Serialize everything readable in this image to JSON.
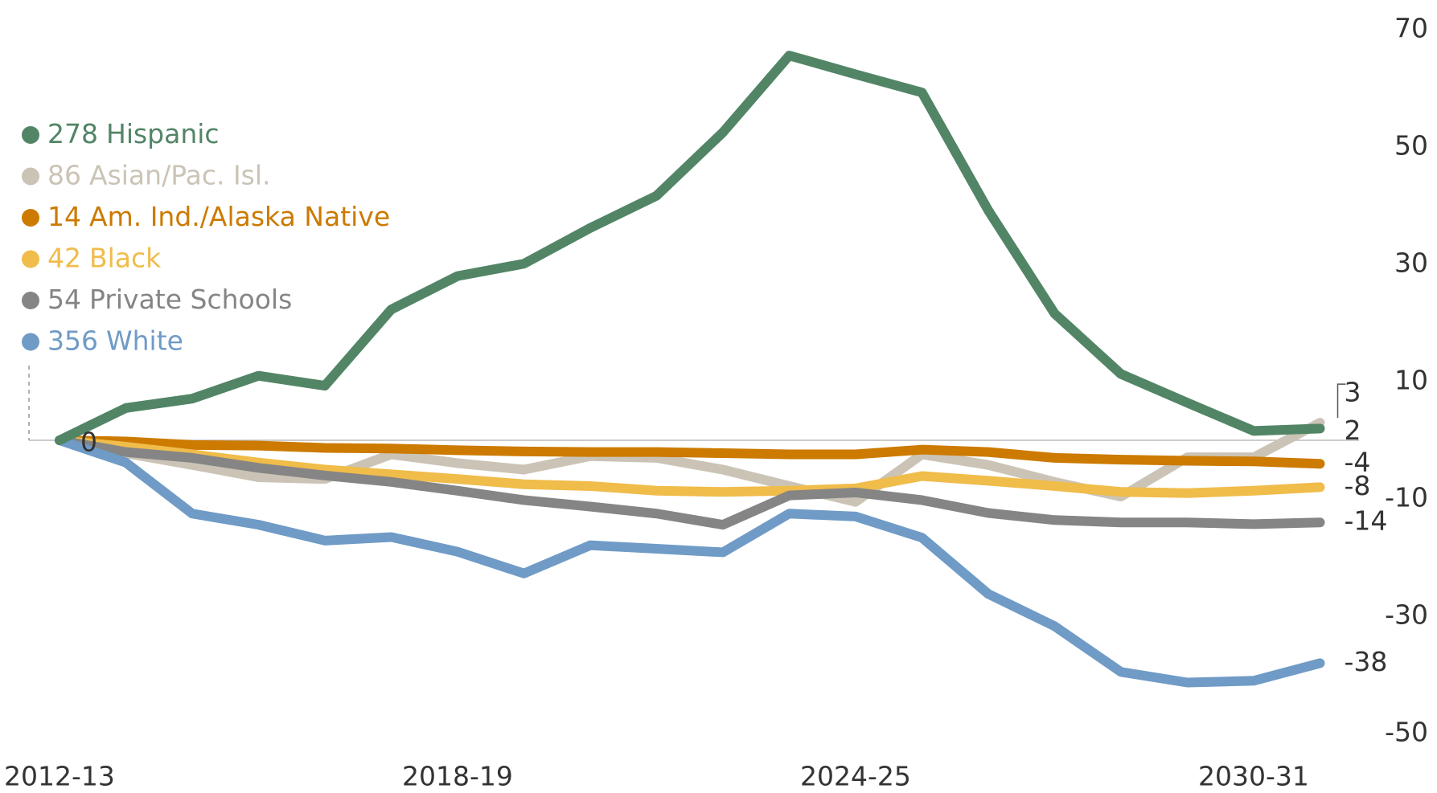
{
  "chart_data": {
    "type": "line",
    "categories": [
      "2012-13",
      null,
      null,
      null,
      null,
      null,
      "2018-19",
      null,
      null,
      null,
      null,
      null,
      "2024-25",
      null,
      null,
      null,
      null,
      null,
      "2030-31",
      null
    ],
    "ylim": [
      -50,
      70
    ],
    "yticks": [
      70,
      50,
      30,
      10,
      -10,
      -30,
      -50
    ],
    "series": [
      {
        "name": "Hispanic",
        "count": 278,
        "color": "#528566",
        "values": [
          0,
          5.5,
          7.1,
          11,
          9.3,
          22.3,
          28,
          30.1,
          36.2,
          41.7,
          52.5,
          65.6,
          62.4,
          59.3,
          39.2,
          21.6,
          11.3,
          6.4,
          1.6,
          2
        ]
      },
      {
        "name": "Asian/Pac. Isl.",
        "count": 86,
        "color": "#cbc4b6",
        "values": [
          0,
          -2.2,
          -4.2,
          -6.3,
          -6.6,
          -2.4,
          -3.9,
          -5,
          -2.7,
          -3,
          -5,
          -7.8,
          -10.5,
          -2.4,
          -4.2,
          -7.1,
          -9.6,
          -2.9,
          -2.9,
          3
        ]
      },
      {
        "name": "Am. Ind./Alaska Native",
        "count": 14,
        "color": "#cc7a00",
        "values": [
          0,
          -0.2,
          -0.8,
          -0.9,
          -1.3,
          -1.4,
          -1.7,
          -1.9,
          -2,
          -2,
          -2.2,
          -2.4,
          -2.4,
          -1.6,
          -2,
          -3,
          -3.3,
          -3.5,
          -3.6,
          -4
        ]
      },
      {
        "name": "Black",
        "count": 42,
        "color": "#f0bc4a",
        "values": [
          0,
          -1.1,
          -2.4,
          -3.8,
          -5,
          -5.8,
          -6.6,
          -7.5,
          -7.8,
          -8.6,
          -8.8,
          -8.6,
          -8.2,
          -6.1,
          -6.9,
          -7.8,
          -8.8,
          -9,
          -8.6,
          -8
        ]
      },
      {
        "name": "Private Schools",
        "count": 54,
        "color": "#858585",
        "values": [
          0,
          -2,
          -3,
          -4.7,
          -6,
          -7.1,
          -8.6,
          -10.2,
          -11.3,
          -12.5,
          -14.4,
          -9.4,
          -8.9,
          -10.2,
          -12.4,
          -13.6,
          -14,
          -14,
          -14.3,
          -14
        ]
      },
      {
        "name": "White",
        "count": 356,
        "color": "#6f9bc6",
        "values": [
          0,
          -3.8,
          -12.5,
          -14.4,
          -17.1,
          -16.5,
          -19,
          -22.7,
          -17.9,
          -18.5,
          -19.1,
          -12.5,
          -13,
          -16.6,
          -26.2,
          -31.7,
          -39.5,
          -41.3,
          -41,
          -38
        ]
      }
    ]
  }
}
